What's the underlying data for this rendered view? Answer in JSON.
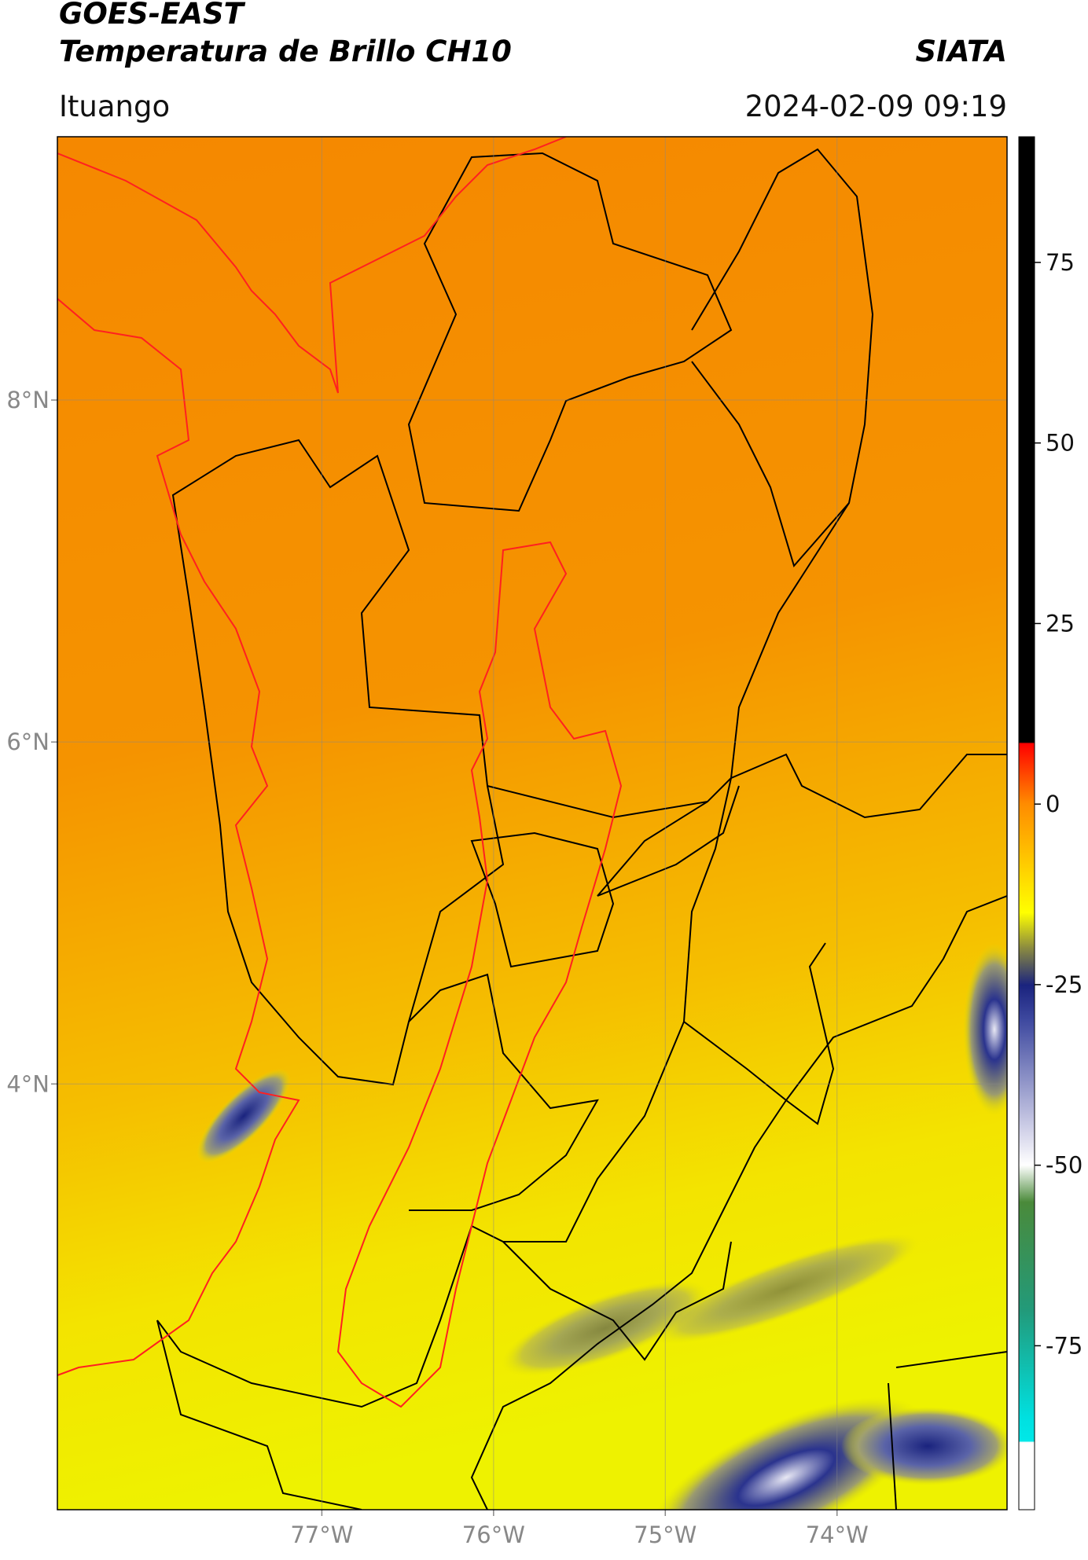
{
  "header": {
    "title_line1": "GOES-EAST",
    "title_line2": "Temperatura de Brillo CH10",
    "org": "SIATA",
    "location": "Ituango",
    "datetime": "2024-02-09 09:19"
  },
  "map": {
    "lat_range": [
      1.51,
      9.54
    ],
    "lon_range": [
      -78.54,
      -73.01
    ],
    "lat_ticks": [
      {
        "value": 8,
        "label": "8°N"
      },
      {
        "value": 6,
        "label": "6°N"
      },
      {
        "value": 4,
        "label": "4°N"
      }
    ],
    "lon_ticks": [
      {
        "value": -77,
        "label": "77°W"
      },
      {
        "value": -76,
        "label": "76°W"
      },
      {
        "value": -75,
        "label": "75°W"
      },
      {
        "value": -74,
        "label": "74°W"
      }
    ]
  },
  "colorbar": {
    "range": [
      -97.7,
      92.4
    ],
    "ticks": [
      -75,
      -50,
      -25,
      0,
      25,
      50,
      75
    ]
  }
}
